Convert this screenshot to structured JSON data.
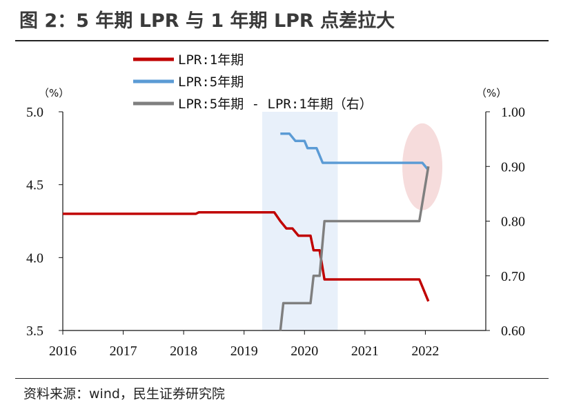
{
  "title": "图 2：5 年期 LPR 与 1 年期 LPR 点差拉大",
  "source": "资料来源：wind，民生证券研究院",
  "chart_data": {
    "type": "line",
    "left_unit": "（%）",
    "right_unit": "（%）",
    "left_axis": {
      "ylim": [
        3.5,
        5.0
      ],
      "ticks": [
        "3.5",
        "4.0",
        "4.5",
        "5.0"
      ]
    },
    "right_axis": {
      "ylim": [
        0.6,
        1.0
      ],
      "ticks": [
        "0.60",
        "0.70",
        "0.80",
        "0.90",
        "1.00"
      ]
    },
    "x_axis": {
      "xlim": [
        2016,
        2023
      ],
      "ticks": [
        "2016",
        "2017",
        "2018",
        "2019",
        "2020",
        "2021",
        "2022"
      ]
    },
    "series": [
      {
        "name": "LPR:1年期",
        "axis": "left",
        "color": "#c00000",
        "points": [
          [
            2016.0,
            4.3
          ],
          [
            2018.2,
            4.3
          ],
          [
            2018.25,
            4.31
          ],
          [
            2019.5,
            4.31
          ],
          [
            2019.6,
            4.25
          ],
          [
            2019.7,
            4.2
          ],
          [
            2019.8,
            4.2
          ],
          [
            2019.9,
            4.15
          ],
          [
            2020.1,
            4.15
          ],
          [
            2020.15,
            4.05
          ],
          [
            2020.25,
            4.05
          ],
          [
            2020.33,
            3.85
          ],
          [
            2021.9,
            3.85
          ],
          [
            2021.95,
            3.8
          ],
          [
            2022.05,
            3.7
          ]
        ]
      },
      {
        "name": "LPR:5年期",
        "axis": "left",
        "color": "#5b9bd5",
        "points": [
          [
            2019.6,
            4.85
          ],
          [
            2019.75,
            4.85
          ],
          [
            2019.85,
            4.8
          ],
          [
            2020.0,
            4.8
          ],
          [
            2020.05,
            4.75
          ],
          [
            2020.2,
            4.75
          ],
          [
            2020.3,
            4.65
          ],
          [
            2021.95,
            4.65
          ],
          [
            2022.05,
            4.6
          ]
        ]
      },
      {
        "name": "LPR:5年期 - LPR:1年期（右）",
        "axis": "right",
        "color": "#7f7f7f",
        "points": [
          [
            2019.6,
            0.6
          ],
          [
            2019.65,
            0.65
          ],
          [
            2019.95,
            0.65
          ],
          [
            2020.1,
            0.65
          ],
          [
            2020.15,
            0.7
          ],
          [
            2020.25,
            0.7
          ],
          [
            2020.33,
            0.8
          ],
          [
            2021.9,
            0.8
          ],
          [
            2022.05,
            0.9
          ]
        ]
      }
    ],
    "legend_position": "top-center",
    "highlight_band": {
      "x_from": 2019.3,
      "x_to": 2020.55,
      "color": "#e8f0fa"
    },
    "highlight_ellipse": {
      "x": 2021.95,
      "y_right": 0.9,
      "color": "#f6dcdc"
    }
  }
}
